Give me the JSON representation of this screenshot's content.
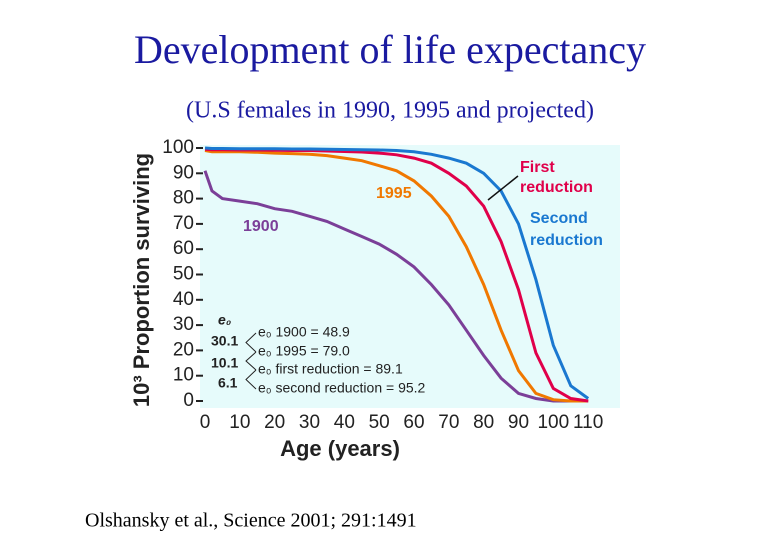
{
  "chart_data": {
    "type": "line",
    "title": "Development of life expectancy",
    "subtitle": "(U.S females in 1990, 1995 and projected)",
    "x_label": "Age (years)",
    "y_label": "10³ Proportion surviving",
    "source": "Olshansky et al., Science 2001; 291:1491",
    "x": [
      0,
      2,
      5,
      10,
      15,
      20,
      25,
      30,
      35,
      40,
      45,
      50,
      55,
      60,
      65,
      70,
      75,
      80,
      85,
      90,
      95,
      100,
      105,
      110
    ],
    "series": [
      {
        "name": "1900",
        "color": "#7b3f98",
        "values": [
          91,
          83,
          80,
          79,
          78,
          76,
          75,
          73,
          71,
          68,
          65,
          62,
          58,
          53,
          46,
          38,
          28,
          18,
          9,
          3,
          1,
          0,
          0,
          0
        ]
      },
      {
        "name": "1995",
        "color": "#f07800",
        "values": [
          99,
          98.5,
          98.5,
          98.5,
          98.3,
          98,
          97.8,
          97.5,
          97,
          96,
          95,
          93,
          91,
          87,
          81,
          73,
          61,
          46,
          28,
          12,
          3,
          0.5,
          0,
          0
        ]
      },
      {
        "name": "First reduction",
        "color": "#e0004a",
        "values": [
          99.5,
          99.3,
          99.3,
          99.2,
          99.2,
          99.1,
          99,
          99,
          98.8,
          98.6,
          98.4,
          98,
          97.3,
          96,
          94,
          90,
          85,
          77,
          63,
          44,
          19,
          5,
          1,
          0
        ]
      },
      {
        "name": "Second reduction",
        "color": "#1a78d0",
        "values": [
          100,
          99.8,
          99.8,
          99.7,
          99.7,
          99.7,
          99.6,
          99.6,
          99.5,
          99.4,
          99.3,
          99.2,
          99,
          98.5,
          97.5,
          96,
          94,
          90,
          83,
          70,
          48,
          22,
          6,
          1
        ]
      }
    ],
    "annotations": [
      {
        "text": "1900",
        "color": "#7b3f98"
      },
      {
        "text": "1995",
        "color": "#f07800"
      },
      {
        "text": "First",
        "color": "#e0004a"
      },
      {
        "text": "reduction",
        "color": "#e0004a"
      },
      {
        "text": "Second",
        "color": "#1a78d0"
      },
      {
        "text": "reduction",
        "color": "#1a78d0"
      }
    ],
    "e0_header": "e₀",
    "e0_differences": [
      "30.1",
      "10.1",
      "6.1"
    ],
    "e0_lines": [
      "e₀ 1900 = 48.9",
      "e₀ 1995 = 79.0",
      "e₀ first reduction = 89.1",
      "e₀ second reduction = 95.2"
    ],
    "xlim": [
      0,
      120
    ],
    "ylim": [
      0,
      100
    ],
    "xticks": [
      0,
      10,
      20,
      30,
      40,
      50,
      60,
      70,
      80,
      90,
      100,
      110
    ],
    "yticks": [
      0,
      10,
      20,
      30,
      40,
      50,
      60,
      70,
      80,
      90,
      100
    ],
    "background": "#e6fbfb"
  }
}
